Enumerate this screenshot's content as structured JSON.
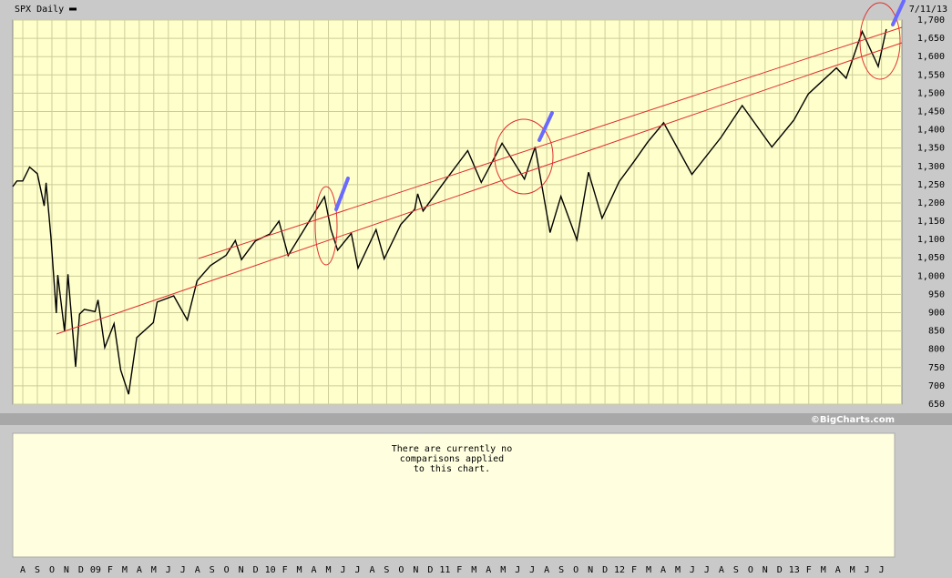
{
  "chart_data": {
    "type": "line",
    "title": "SPX Daily",
    "date_label": "7/11/13",
    "credit": "©BigCharts.com",
    "comparison_note": [
      "There are currently no",
      "comparisons applied",
      "to this chart."
    ],
    "series": [
      {
        "name": "SPX Daily",
        "color": "#000000",
        "x": [
          -0.69,
          -0.4,
          0,
          0.47,
          1.0,
          1.47,
          1.6,
          1.93,
          2.3,
          2.4,
          2.87,
          3.1,
          3.63,
          3.9,
          4.23,
          4.97,
          5.17,
          5.63,
          6.27,
          6.73,
          7.27,
          7.83,
          8.97,
          9.23,
          10.37,
          11.3,
          11.97,
          12.9,
          13.97,
          14.6,
          15.03,
          15.97,
          16.97,
          17.6,
          18.23,
          19.97,
          20.73,
          21.17,
          21.63,
          22.57,
          23.03,
          24.27,
          24.83,
          25.97,
          26.93,
          27.13,
          27.5,
          28.97,
          30.57,
          31.5,
          32.93,
          34.47,
          35.2,
          36.23,
          36.97,
          38.07,
          38.87,
          39.8,
          40.97,
          41.97,
          42.93,
          44.03,
          45.97,
          47.97,
          49.43,
          51.47,
          52.97,
          53.97,
          55.9,
          56.57,
          57.67,
          58.77,
          59.33
        ],
        "values": [
          1245,
          1260,
          1260,
          1298,
          1280,
          1192,
          1255,
          1106,
          899,
          1003,
          848,
          1005,
          752,
          896,
          909,
          903,
          935,
          805,
          870,
          743,
          677,
          832,
          873,
          929,
          946,
          880,
          987,
          1029,
          1057,
          1097,
          1045,
          1096,
          1115,
          1150,
          1056,
          1169,
          1217,
          1128,
          1071,
          1117,
          1022,
          1127,
          1047,
          1141,
          1183,
          1225,
          1178,
          1258,
          1343,
          1256,
          1363,
          1265,
          1353,
          1119,
          1218,
          1099,
          1284,
          1158,
          1258,
          1312,
          1366,
          1419,
          1278,
          1379,
          1466,
          1353,
          1426,
          1498,
          1569,
          1541,
          1669,
          1573,
          1675
        ]
      }
    ],
    "xlim": [
      -0.69,
      60.4
    ],
    "xticks": [
      {
        "value": 0,
        "label": "A"
      },
      {
        "value": 1,
        "label": "S"
      },
      {
        "value": 2,
        "label": "O"
      },
      {
        "value": 3,
        "label": "N"
      },
      {
        "value": 4,
        "label": "D"
      },
      {
        "value": 5,
        "label": "09"
      },
      {
        "value": 6,
        "label": "F"
      },
      {
        "value": 7,
        "label": "M"
      },
      {
        "value": 8,
        "label": "A"
      },
      {
        "value": 9,
        "label": "M"
      },
      {
        "value": 10,
        "label": "J"
      },
      {
        "value": 11,
        "label": "J"
      },
      {
        "value": 12,
        "label": "A"
      },
      {
        "value": 13,
        "label": "S"
      },
      {
        "value": 14,
        "label": "O"
      },
      {
        "value": 15,
        "label": "N"
      },
      {
        "value": 16,
        "label": "D"
      },
      {
        "value": 17,
        "label": "10"
      },
      {
        "value": 18,
        "label": "F"
      },
      {
        "value": 19,
        "label": "M"
      },
      {
        "value": 20,
        "label": "A"
      },
      {
        "value": 21,
        "label": "M"
      },
      {
        "value": 22,
        "label": "J"
      },
      {
        "value": 23,
        "label": "J"
      },
      {
        "value": 24,
        "label": "A"
      },
      {
        "value": 25,
        "label": "S"
      },
      {
        "value": 26,
        "label": "O"
      },
      {
        "value": 27,
        "label": "N"
      },
      {
        "value": 28,
        "label": "D"
      },
      {
        "value": 29,
        "label": "11"
      },
      {
        "value": 30,
        "label": "F"
      },
      {
        "value": 31,
        "label": "M"
      },
      {
        "value": 32,
        "label": "A"
      },
      {
        "value": 33,
        "label": "M"
      },
      {
        "value": 34,
        "label": "J"
      },
      {
        "value": 35,
        "label": "J"
      },
      {
        "value": 36,
        "label": "A"
      },
      {
        "value": 37,
        "label": "S"
      },
      {
        "value": 38,
        "label": "O"
      },
      {
        "value": 39,
        "label": "N"
      },
      {
        "value": 40,
        "label": "D"
      },
      {
        "value": 41,
        "label": "12"
      },
      {
        "value": 42,
        "label": "F"
      },
      {
        "value": 43,
        "label": "M"
      },
      {
        "value": 44,
        "label": "A"
      },
      {
        "value": 45,
        "label": "M"
      },
      {
        "value": 46,
        "label": "J"
      },
      {
        "value": 47,
        "label": "J"
      },
      {
        "value": 48,
        "label": "A"
      },
      {
        "value": 49,
        "label": "S"
      },
      {
        "value": 50,
        "label": "O"
      },
      {
        "value": 51,
        "label": "N"
      },
      {
        "value": 52,
        "label": "D"
      },
      {
        "value": 53,
        "label": "13"
      },
      {
        "value": 54,
        "label": "F"
      },
      {
        "value": 55,
        "label": "M"
      },
      {
        "value": 56,
        "label": "A"
      },
      {
        "value": 57,
        "label": "M"
      },
      {
        "value": 58,
        "label": "J"
      },
      {
        "value": 59,
        "label": "J"
      }
    ],
    "ylim": [
      650,
      1700
    ],
    "yticks": [
      650,
      700,
      750,
      800,
      850,
      900,
      950,
      {
        "value": 1000,
        "label": "1,000"
      },
      {
        "value": 1050,
        "label": "1,050"
      },
      {
        "value": 1100,
        "label": "1,100"
      },
      {
        "value": 1150,
        "label": "1,150"
      },
      {
        "value": 1200,
        "label": "1,200"
      },
      {
        "value": 1250,
        "label": "1,250"
      },
      {
        "value": 1300,
        "label": "1,300"
      },
      {
        "value": 1350,
        "label": "1,350"
      },
      {
        "value": 1400,
        "label": "1,400"
      },
      {
        "value": 1450,
        "label": "1,450"
      },
      {
        "value": 1500,
        "label": "1,500"
      },
      {
        "value": 1550,
        "label": "1,550"
      },
      {
        "value": 1600,
        "label": "1,600"
      },
      {
        "value": 1650,
        "label": "1,650"
      },
      {
        "value": 1700,
        "label": "1,700"
      }
    ],
    "grid": true
  }
}
